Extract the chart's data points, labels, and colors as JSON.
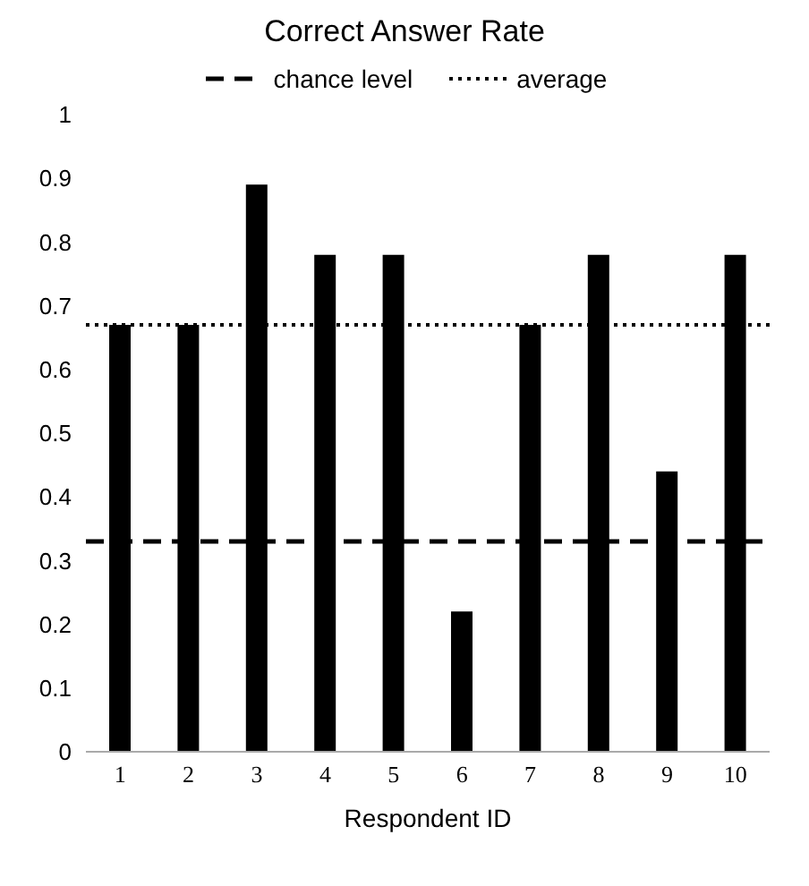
{
  "chart_data": {
    "type": "bar",
    "title": "Correct Answer Rate",
    "xlabel": "Respondent ID",
    "categories": [
      "1",
      "2",
      "3",
      "4",
      "5",
      "6",
      "7",
      "8",
      "9",
      "10"
    ],
    "values": [
      0.67,
      0.67,
      0.89,
      0.78,
      0.78,
      0.22,
      0.67,
      0.78,
      0.44,
      0.78
    ],
    "color": "#000000",
    "ylim": [
      0,
      1
    ],
    "yticks": [
      0,
      0.1,
      0.2,
      0.3,
      0.4,
      0.5,
      0.6,
      0.7,
      0.8,
      0.9,
      1
    ],
    "grid": false,
    "legend": "top",
    "ref_lines": [
      {
        "axis": "y",
        "value": 0.33,
        "label": "chance level",
        "line_style": "dashed",
        "color": "#000000"
      },
      {
        "axis": "y",
        "value": 0.67,
        "label": "average",
        "line_style": "dotted",
        "color": "#000000"
      }
    ]
  }
}
